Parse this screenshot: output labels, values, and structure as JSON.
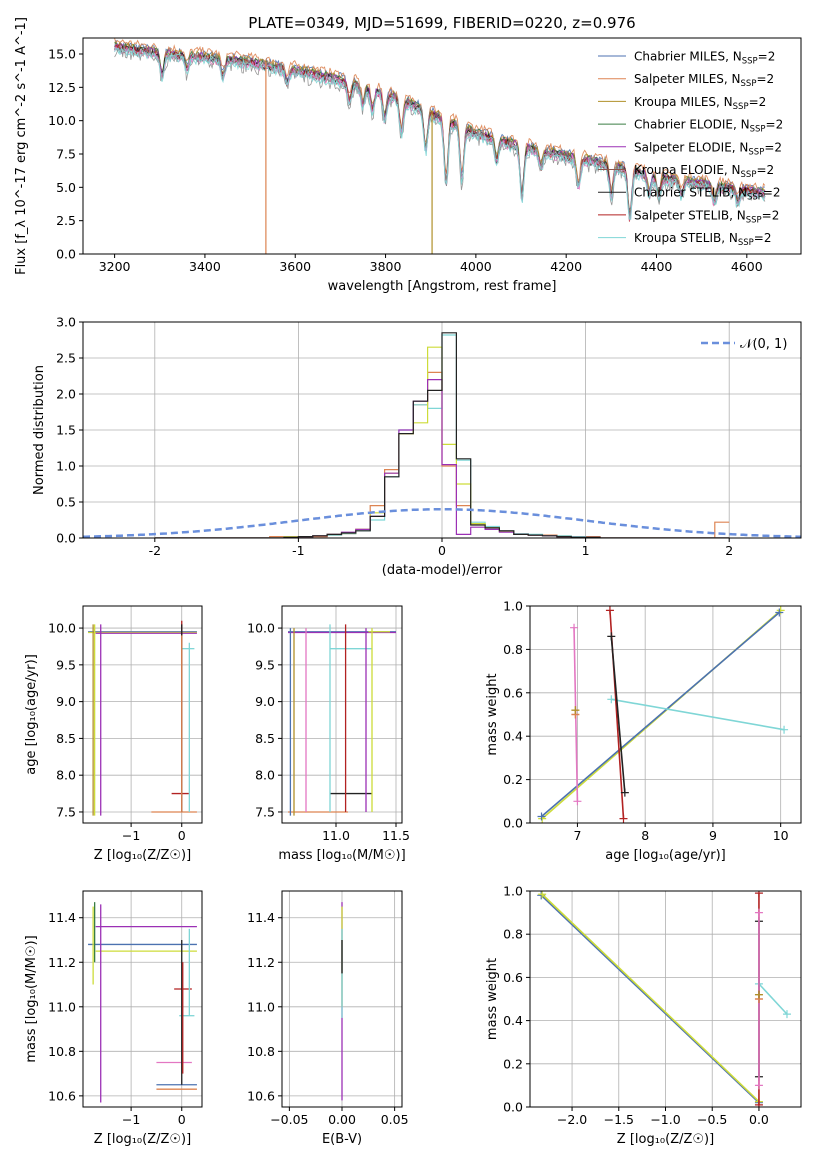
{
  "figure": {
    "title": "PLATE=0349, MJD=51699, FIBERID=0220, z=0.976"
  },
  "legend_spectrum": [
    {
      "label": "Chabrier MILES, N",
      "sub": "SSP",
      "tail": "=2",
      "color": "#4c72b0"
    },
    {
      "label": "Salpeter MILES, N",
      "sub": "SSP",
      "tail": "=2",
      "color": "#dd8452"
    },
    {
      "label": "Kroupa MILES, N",
      "sub": "SSP",
      "tail": "=2",
      "color": "#b0902a"
    },
    {
      "label": "Chabrier ELODIE, N",
      "sub": "SSP",
      "tail": "=2",
      "color": "#3a7d44"
    },
    {
      "label": "Salpeter ELODIE, N",
      "sub": "SSP",
      "tail": "=2",
      "color": "#9b30b5"
    },
    {
      "label": "Kroupa ELODIE, N",
      "sub": "SSP",
      "tail": "=2",
      "color": "#8c564b"
    },
    {
      "label": "Chabrier STELIB, N",
      "sub": "SSP",
      "tail": "=2",
      "color": "#222222"
    },
    {
      "label": "Salpeter STELIB, N",
      "sub": "SSP",
      "tail": "=2",
      "color": "#b22222"
    },
    {
      "label": "Kroupa STELIB, N",
      "sub": "SSP",
      "tail": "=2",
      "color": "#7fd6d6"
    }
  ],
  "legend_hist": {
    "label": "𝒩(0, 1)",
    "color": "#6a8fdc"
  },
  "chart_data": [
    {
      "id": "spectrum",
      "type": "line",
      "xlabel": "wavelength [Angstrom, rest frame]",
      "ylabel": "Flux [f_λ 10^-17 erg cm^-2 s^-1 A^-1]",
      "xlim": [
        3130,
        4720
      ],
      "ylim": [
        0,
        16.2
      ],
      "xticks": [
        3200,
        3400,
        3600,
        3800,
        4000,
        4200,
        4400,
        4600
      ],
      "yticks": [
        0.0,
        2.5,
        5.0,
        7.5,
        10.0,
        12.5,
        15.0
      ],
      "ytick_labels": [
        "0.0",
        "2.5",
        "5.0",
        "7.5",
        "10.0",
        "12.5",
        "15.0"
      ],
      "continuum": [
        [
          3200,
          15.8
        ],
        [
          3300,
          15.3
        ],
        [
          3400,
          15.0
        ],
        [
          3500,
          14.6
        ],
        [
          3600,
          14.0
        ],
        [
          3700,
          13.3
        ],
        [
          3800,
          12.3
        ],
        [
          3900,
          10.8
        ],
        [
          4000,
          9.3
        ],
        [
          4100,
          8.3
        ],
        [
          4200,
          7.6
        ],
        [
          4300,
          6.9
        ],
        [
          4400,
          6.0
        ],
        [
          4500,
          5.5
        ],
        [
          4640,
          4.8
        ]
      ],
      "absorption_lines": [
        [
          3305,
          1.6
        ],
        [
          3360,
          1.0
        ],
        [
          3440,
          1.2
        ],
        [
          3582,
          1.0
        ],
        [
          3720,
          1.4
        ],
        [
          3750,
          1.3
        ],
        [
          3771,
          1.6
        ],
        [
          3798,
          1.9
        ],
        [
          3835,
          2.4
        ],
        [
          3889,
          2.9
        ],
        [
          3934,
          4.8
        ],
        [
          3969,
          4.0
        ],
        [
          4046,
          1.6
        ],
        [
          4102,
          3.7
        ],
        [
          4144,
          1.2
        ],
        [
          4227,
          2.1
        ],
        [
          4300,
          2.3
        ],
        [
          4341,
          3.6
        ],
        [
          4384,
          1.3
        ],
        [
          4405,
          1.5
        ],
        [
          4455,
          1.0
        ],
        [
          4528,
          1.2
        ],
        [
          4580,
          1.0
        ]
      ],
      "spikes": [
        [
          3535,
          "#dd8452"
        ],
        [
          3903,
          "#b0902a"
        ]
      ]
    },
    {
      "id": "residuals",
      "type": "bar",
      "xlabel": "(data-model)/error",
      "ylabel": "Normed distribution",
      "xlim": [
        -2.5,
        2.5
      ],
      "ylim": [
        0,
        3.0
      ],
      "xticks": [
        -2,
        -1,
        0,
        1,
        2
      ],
      "yticks": [
        0.0,
        0.5,
        1.0,
        1.5,
        2.0,
        2.5,
        3.0
      ],
      "ytick_labels": [
        "0.0",
        "0.5",
        "1.0",
        "1.5",
        "2.0",
        "2.5",
        "3.0"
      ],
      "bin_edges": [
        -2.0,
        -1.9,
        -1.8,
        -1.7,
        -1.6,
        -1.5,
        -1.4,
        -1.3,
        -1.2,
        -1.1,
        -1.0,
        -0.9,
        -0.8,
        -0.7,
        -0.6,
        -0.5,
        -0.4,
        -0.3,
        -0.2,
        -0.1,
        0.0,
        0.1,
        0.2,
        0.3,
        0.4,
        0.5,
        0.6,
        0.7,
        0.8,
        0.9,
        1.0,
        1.1,
        1.2,
        1.3,
        1.4,
        1.5,
        1.6,
        1.7,
        1.8,
        1.9,
        2.0
      ],
      "series": [
        {
          "color": "#dd8452",
          "values": [
            0,
            0.0,
            0,
            0.0,
            0.0,
            0.0,
            0.0,
            0.0,
            0.02,
            0.02,
            0.02,
            0.02,
            0.04,
            0.06,
            0.12,
            0.45,
            0.95,
            1.45,
            1.85,
            2.3,
            1.0,
            0.45,
            0.2,
            0.15,
            0.1,
            0.05,
            0.04,
            0.04,
            0.03,
            0.02,
            0.02,
            0.0,
            0.0,
            0.0,
            0.0,
            0.0,
            0.0,
            0.0,
            0.0,
            0.22
          ]
        },
        {
          "color": "#7fd6d6",
          "values": [
            0,
            0,
            0,
            0,
            0,
            0,
            0,
            0,
            0,
            0.02,
            0.02,
            0.03,
            0.04,
            0.06,
            0.1,
            0.25,
            0.85,
            1.5,
            1.85,
            1.8,
            2.82,
            1.08,
            0.22,
            0.16,
            0.1,
            0.06,
            0.05,
            0.03,
            0.03,
            0.02,
            0.01,
            0,
            0,
            0,
            0,
            0,
            0,
            0,
            0,
            0
          ]
        },
        {
          "color": "#cddc39",
          "values": [
            0,
            0,
            0,
            0,
            0,
            0,
            0,
            0,
            0,
            0.02,
            0.02,
            0.03,
            0.05,
            0.07,
            0.12,
            0.35,
            0.9,
            1.45,
            1.6,
            2.65,
            1.3,
            0.75,
            0.2,
            0.14,
            0.09,
            0.05,
            0.04,
            0.03,
            0.02,
            0.01,
            0.01,
            0,
            0,
            0,
            0,
            0,
            0,
            0,
            0,
            0
          ]
        },
        {
          "color": "#9b30b5",
          "values": [
            0,
            0,
            0,
            0,
            0,
            0,
            0,
            0,
            0,
            0.01,
            0.02,
            0.03,
            0.05,
            0.08,
            0.12,
            0.3,
            0.9,
            1.5,
            1.9,
            2.2,
            1.02,
            0.05,
            0.15,
            0.12,
            0.08,
            0.05,
            0.04,
            0.03,
            0.02,
            0.01,
            0.01,
            0,
            0,
            0,
            0,
            0,
            0,
            0,
            0,
            0
          ]
        },
        {
          "color": "#222222",
          "values": [
            0,
            0,
            0,
            0,
            0,
            0,
            0,
            0,
            0,
            0.01,
            0.02,
            0.03,
            0.05,
            0.07,
            0.1,
            0.3,
            0.85,
            1.45,
            1.9,
            2.05,
            2.85,
            1.1,
            0.18,
            0.14,
            0.1,
            0.05,
            0.04,
            0.03,
            0.02,
            0.01,
            0.01,
            0,
            0,
            0,
            0,
            0,
            0,
            0,
            0,
            0
          ]
        }
      ],
      "normal_curve": {
        "mu": 0,
        "sigma": 1,
        "label": "𝒩(0, 1)"
      }
    },
    {
      "id": "age_vs_Z",
      "type": "scatter",
      "xlabel": "Z [log₁₀(Z/Z☉)]",
      "ylabel": "age  [log₁₀(age/yr)]",
      "xlim": [
        -1.95,
        0.4
      ],
      "ylim": [
        7.35,
        10.3
      ],
      "xticks": [
        -1,
        0
      ],
      "xtick_labels": [
        "−1",
        "0"
      ],
      "yticks": [
        7.5,
        8.0,
        8.5,
        9.0,
        9.5,
        10.0
      ],
      "ytick_labels": [
        "7.5",
        "8.0",
        "8.5",
        "9.0",
        "9.5",
        "10.0"
      ],
      "hsegs": [
        [
          -1.85,
          0.3,
          9.95,
          "#4c72b0"
        ],
        [
          -1.85,
          0.3,
          9.94,
          "#cddc39"
        ],
        [
          -1.7,
          0.3,
          9.93,
          "#9b30b5"
        ],
        [
          -0.2,
          0.15,
          7.75,
          "#b22222"
        ],
        [
          -0.6,
          0.3,
          7.5,
          "#dd8452"
        ],
        [
          0.0,
          0.25,
          9.72,
          "#7fd6d6"
        ]
      ],
      "vsegs": [
        [
          -1.72,
          7.45,
          10.05,
          "#cddc39"
        ],
        [
          -1.6,
          7.45,
          10.05,
          "#9b30b5"
        ],
        [
          -1.75,
          7.45,
          10.05,
          "#b0902a"
        ],
        [
          0.0,
          7.5,
          10.1,
          "#b22222"
        ],
        [
          0.0,
          7.5,
          10.05,
          "#222222"
        ],
        [
          0.15,
          7.5,
          9.8,
          "#7fd6d6"
        ],
        [
          0.0,
          7.5,
          9.9,
          "#dd8452"
        ]
      ]
    },
    {
      "id": "age_vs_mass",
      "type": "scatter",
      "xlabel": "mass [log₁₀(M/M☉)]",
      "ylabel": "",
      "xlim": [
        10.55,
        11.55
      ],
      "ylim": [
        7.35,
        10.3
      ],
      "xticks": [
        11.0,
        11.5
      ],
      "xtick_labels": [
        "11.0",
        "11.5"
      ],
      "yticks": [
        7.5,
        8.0,
        8.5,
        9.0,
        9.5,
        10.0
      ],
      "ytick_labels": [
        "7.5",
        "8.0",
        "8.5",
        "9.0",
        "9.5",
        "10.0"
      ],
      "hsegs": [
        [
          10.6,
          11.5,
          9.95,
          "#4c72b0"
        ],
        [
          10.6,
          11.5,
          9.94,
          "#9b30b5"
        ],
        [
          11.27,
          11.45,
          9.95,
          "#cddc39"
        ],
        [
          10.95,
          11.3,
          9.72,
          "#7fd6d6"
        ],
        [
          10.95,
          11.3,
          7.75,
          "#222222"
        ],
        [
          10.6,
          11.1,
          7.5,
          "#dd8452"
        ]
      ],
      "vsegs": [
        [
          10.62,
          7.45,
          10.0,
          "#4c72b0"
        ],
        [
          10.65,
          7.45,
          10.0,
          "#b0902a"
        ],
        [
          10.75,
          7.5,
          10.0,
          "#e377c2"
        ],
        [
          10.95,
          7.5,
          10.05,
          "#7fd6d6"
        ],
        [
          11.08,
          7.5,
          10.05,
          "#b22222"
        ],
        [
          11.25,
          7.5,
          10.0,
          "#9b30b5"
        ],
        [
          11.3,
          7.5,
          10.0,
          "#cddc39"
        ]
      ]
    },
    {
      "id": "weight_vs_age",
      "type": "scatter",
      "xlabel": "age  [log₁₀(age/yr)]",
      "ylabel": "mass weight",
      "xlim": [
        6.3,
        10.3
      ],
      "ylim": [
        0,
        1.0
      ],
      "xticks": [
        7,
        8,
        9,
        10
      ],
      "yticks": [
        0.0,
        0.2,
        0.4,
        0.6,
        0.8,
        1.0
      ],
      "ytick_labels": [
        "0.0",
        "0.2",
        "0.4",
        "0.6",
        "0.8",
        "1.0"
      ],
      "lines": [
        [
          [
            6.48,
            0.02
          ],
          [
            10.0,
            0.98
          ],
          "#cddc39"
        ],
        [
          [
            6.47,
            0.03
          ],
          [
            9.98,
            0.97
          ],
          "#4c72b0"
        ],
        [
          [
            7.5,
            0.57
          ],
          [
            10.05,
            0.43
          ],
          "#7fd6d6"
        ],
        [
          [
            7.48,
            0.98
          ],
          [
            7.68,
            0.02
          ],
          "#b22222"
        ],
        [
          [
            7.5,
            0.86
          ],
          [
            7.7,
            0.14
          ],
          "#222222"
        ],
        [
          [
            6.95,
            0.9
          ],
          [
            7.0,
            0.1
          ],
          "#e377c2"
        ]
      ],
      "points": [
        [
          6.97,
          0.5,
          "#dd8452"
        ],
        [
          6.97,
          0.52,
          "#b0902a"
        ]
      ]
    },
    {
      "id": "mass_vs_Z",
      "type": "scatter",
      "xlabel": "Z [log₁₀(Z/Z☉)]",
      "ylabel": "mass [log₁₀(M/M☉)]",
      "xlim": [
        -1.95,
        0.4
      ],
      "ylim": [
        10.55,
        11.52
      ],
      "xticks": [
        -1,
        0
      ],
      "xtick_labels": [
        "−1",
        "0"
      ],
      "yticks": [
        10.6,
        10.8,
        11.0,
        11.2,
        11.4
      ],
      "ytick_labels": [
        "10.6",
        "10.8",
        "11.0",
        "11.2",
        "11.4"
      ],
      "hsegs": [
        [
          -1.7,
          0.3,
          11.36,
          "#9b30b5"
        ],
        [
          -1.85,
          0.3,
          11.28,
          "#4c72b0"
        ],
        [
          -1.7,
          0.3,
          11.25,
          "#cddc39"
        ],
        [
          -0.15,
          0.2,
          11.08,
          "#b22222"
        ],
        [
          -0.05,
          0.25,
          10.96,
          "#7fd6d6"
        ],
        [
          -0.5,
          0.2,
          10.75,
          "#e377c2"
        ],
        [
          -0.5,
          0.3,
          10.65,
          "#4c72b0"
        ],
        [
          -0.5,
          0.3,
          10.63,
          "#dd8452"
        ]
      ],
      "vsegs": [
        [
          -1.75,
          11.1,
          11.45,
          "#cddc39"
        ],
        [
          -1.72,
          11.2,
          11.47,
          "#3a7d44"
        ],
        [
          -1.6,
          10.57,
          11.46,
          "#9b30b5"
        ],
        [
          0.0,
          10.65,
          11.3,
          "#222222"
        ],
        [
          0.02,
          10.7,
          11.2,
          "#b22222"
        ],
        [
          0.15,
          10.96,
          11.35,
          "#7fd6d6"
        ]
      ]
    },
    {
      "id": "mass_vs_ebv",
      "type": "scatter",
      "xlabel": "E(B-V)",
      "ylabel": "",
      "xlim": [
        -0.057,
        0.057
      ],
      "ylim": [
        10.55,
        11.52
      ],
      "xticks": [
        -0.05,
        0.0,
        0.05
      ],
      "xtick_labels": [
        "−0.05",
        "0.00",
        "0.05"
      ],
      "yticks": [
        10.6,
        10.8,
        11.0,
        11.2,
        11.4
      ],
      "ytick_labels": [
        "10.6",
        "10.8",
        "11.0",
        "11.2",
        "11.4"
      ],
      "vsegs": [
        [
          0.0,
          10.58,
          11.47,
          "#9b30b5"
        ],
        [
          0.0,
          11.0,
          11.45,
          "#cddc39"
        ],
        [
          0.0,
          10.95,
          11.35,
          "#7fd6d6"
        ],
        [
          0.0,
          11.15,
          11.3,
          "#222222"
        ]
      ]
    },
    {
      "id": "weight_vs_Z",
      "type": "scatter",
      "xlabel": "Z [log₁₀(Z/Z☉)]",
      "ylabel": "mass weight",
      "xlim": [
        -2.45,
        0.45
      ],
      "ylim": [
        0,
        1.0
      ],
      "xticks": [
        -2.0,
        -1.5,
        -1.0,
        -0.5,
        0.0
      ],
      "xtick_labels": [
        "−2.0",
        "−1.5",
        "−1.0",
        "−0.5",
        "0.0"
      ],
      "yticks": [
        0.0,
        0.2,
        0.4,
        0.6,
        0.8,
        1.0
      ],
      "ytick_labels": [
        "0.0",
        "0.2",
        "0.4",
        "0.6",
        "0.8",
        "1.0"
      ],
      "lines": [
        [
          [
            -2.33,
            0.98
          ],
          [
            0.0,
            0.02
          ],
          "#4c72b0"
        ],
        [
          [
            -2.32,
            0.985
          ],
          [
            0.0,
            0.025
          ],
          "#cddc39"
        ],
        [
          [
            0.0,
            0.99
          ],
          [
            0.0,
            0.01
          ],
          "#b22222"
        ],
        [
          [
            0.0,
            0.57
          ],
          [
            0.3,
            0.43
          ],
          "#7fd6d6"
        ],
        [
          [
            0.0,
            0.86
          ],
          [
            0.0,
            0.14
          ],
          "#222222"
        ],
        [
          [
            0.0,
            0.9
          ],
          [
            0.0,
            0.1
          ],
          "#e377c2"
        ]
      ],
      "points": [
        [
          0.0,
          0.5,
          "#dd8452"
        ],
        [
          0.0,
          0.52,
          "#b0902a"
        ]
      ]
    }
  ]
}
